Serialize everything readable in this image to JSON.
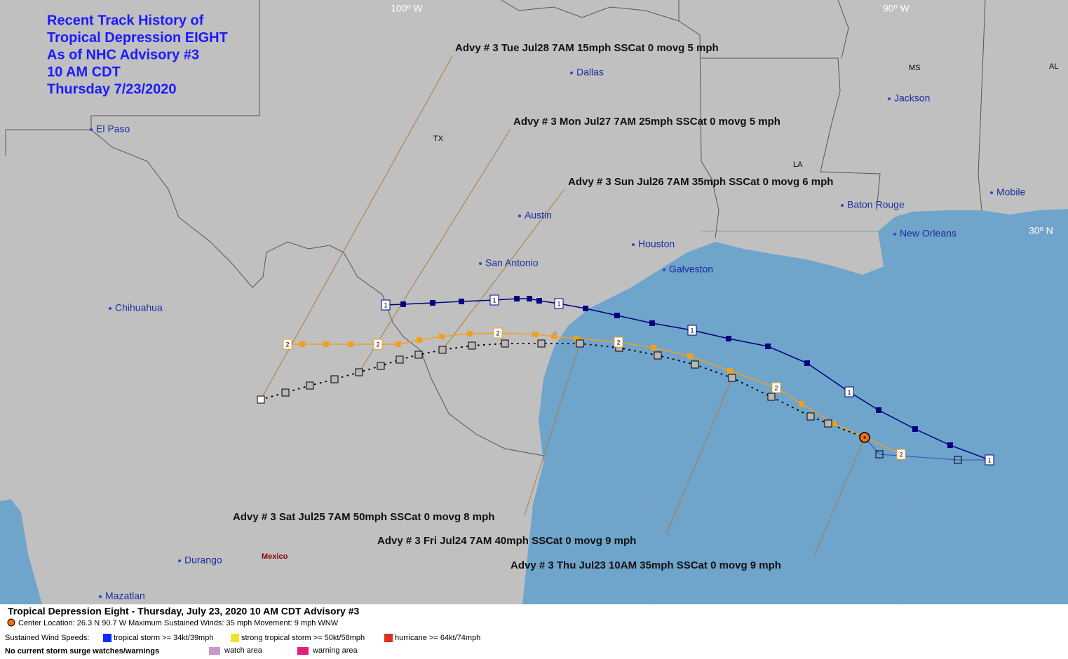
{
  "title": {
    "lines": [
      "Recent Track History of",
      "Tropical Depression EIGHT",
      "As of NHC Advisory #3",
      "10 AM CDT",
      "Thursday 7/23/2020"
    ]
  },
  "grid_labels": [
    "100º W",
    "90º W",
    "30º N"
  ],
  "places": [
    "El Paso",
    "Dallas",
    "Austin",
    "San Antonio",
    "Houston",
    "Galveston",
    "Chihuahua",
    "Durango",
    "Mazatlan",
    "Jackson",
    "Baton Rouge",
    "New Orleans",
    "Mobile"
  ],
  "regions": [
    "TX",
    "LA",
    "MS",
    "AL",
    "Mexico"
  ],
  "track_marker_labels": [
    "1",
    "2"
  ],
  "advisories": [
    "Advy # 3 Tue Jul28 7AM  15mph SSCat 0 movg 5 mph",
    "Advy # 3 Mon Jul27 7AM  25mph SSCat 0 movg 5 mph",
    "Advy # 3 Sun Jul26 7AM  35mph SSCat 0 movg 6 mph",
    "Advy # 3 Sat Jul25 7AM  50mph SSCat 0 movg 8 mph",
    "Advy # 3 Fri Jul24 7AM  40mph SSCat 0 movg 9 mph",
    "Advy # 3 Thu Jul23 10AM  35mph SSCat 0 movg 9 mph"
  ],
  "legend": {
    "heading": "Tropical Depression Eight  -  Thursday, July 23, 2020  10 AM CDT   Advisory #3",
    "center": "Center Location: 26.3 N  90.7 W  Maximum Sustained Winds: 35 mph  Movement: 9 mph WNW",
    "wind_label": "Sustained Wind Speeds:",
    "wind_items": [
      "tropical storm >= 34kt/39mph",
      "strong tropical storm >= 50kt/58mph",
      "hurricane >= 64kt/74mph"
    ],
    "surge": "No current storm surge watches/warnings",
    "surge_items": [
      "watch area",
      "warning area"
    ]
  }
}
